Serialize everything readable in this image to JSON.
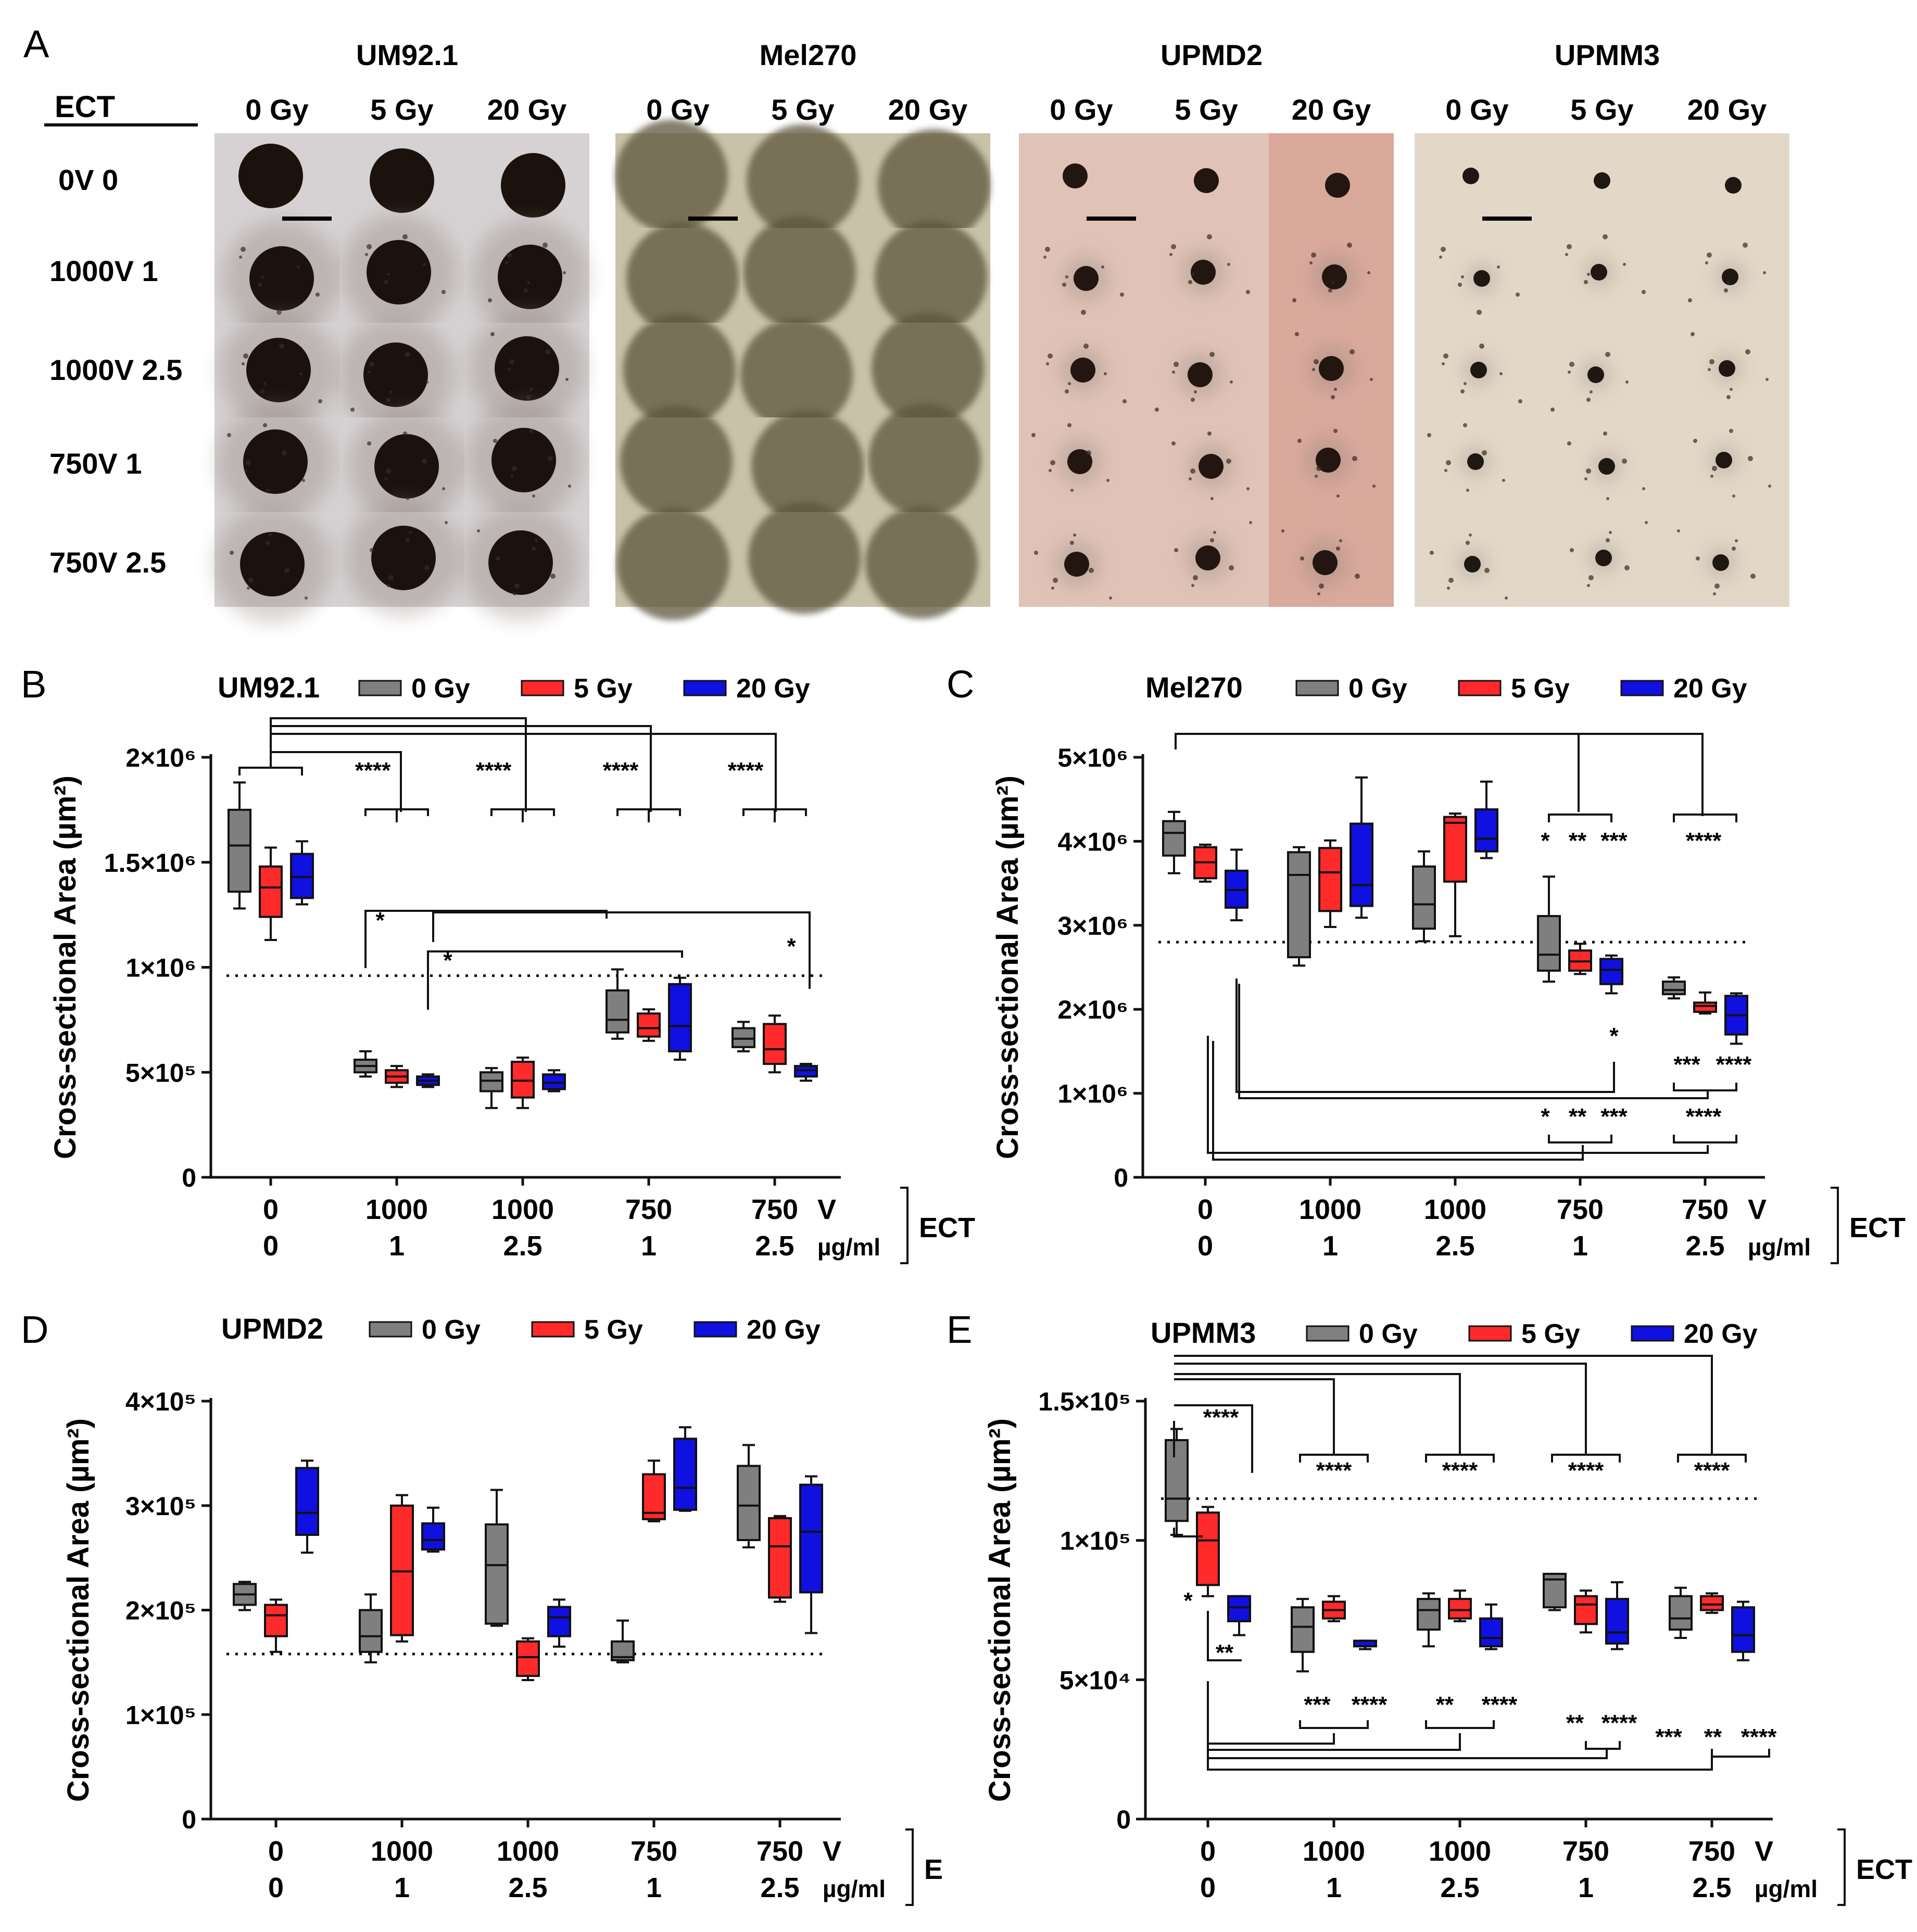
{
  "panel_a": {
    "letter": "A",
    "ect_header": "ECT",
    "row_labels": [
      "0V 0",
      "1000V 1",
      "1000V 2.5",
      "750V 1",
      "750V 2.5"
    ],
    "cell_lines": [
      {
        "name": "UM92.1",
        "doses": [
          "0 Gy",
          "5 Gy",
          "20 Gy"
        ],
        "style": "um"
      },
      {
        "name": "Mel270",
        "doses": [
          "0 Gy",
          "5 Gy",
          "20 Gy"
        ],
        "style": "mel"
      },
      {
        "name": "UPMD2",
        "doses": [
          "0 Gy",
          "5 Gy",
          "20 Gy"
        ],
        "style": "upmd"
      },
      {
        "name": "UPMM3",
        "doses": [
          "0 Gy",
          "5 Gy",
          "20 Gy"
        ],
        "style": "upmm"
      }
    ]
  },
  "chart_data": [
    {
      "panel": "B",
      "title": "UM92.1",
      "type": "box",
      "ylabel": "Cross-sectional Area (µm²)",
      "ylim": [
        0,
        2000000
      ],
      "yticks": [
        {
          "v": 0,
          "label": "0"
        },
        {
          "v": 500000,
          "label": "5×10⁵"
        },
        {
          "v": 1000000,
          "label": "1×10⁶"
        },
        {
          "v": 1500000,
          "label": "1.5×10⁶"
        },
        {
          "v": 2000000,
          "label": "2×10⁶"
        }
      ],
      "categories": [
        {
          "v": "0",
          "d": "0"
        },
        {
          "v": "1000",
          "d": "1"
        },
        {
          "v": "1000",
          "d": "2.5"
        },
        {
          "v": "750",
          "d": "1"
        },
        {
          "v": "750",
          "d": "2.5"
        }
      ],
      "unit_v": "V",
      "unit_d": "µg/ml",
      "group_label": "ECT",
      "reference_line": 960000,
      "legend": [
        "0 Gy",
        "5 Gy",
        "20 Gy"
      ],
      "series": [
        {
          "name": "0 Gy",
          "boxes": [
            [
              1280000,
              1360000,
              1580000,
              1750000,
              1880000
            ],
            [
              480000,
              500000,
              530000,
              560000,
              600000
            ],
            [
              330000,
              410000,
              460000,
              500000,
              520000
            ],
            [
              660000,
              690000,
              750000,
              890000,
              990000
            ],
            [
              600000,
              620000,
              660000,
              710000,
              740000
            ]
          ]
        },
        {
          "name": "5 Gy",
          "boxes": [
            [
              1130000,
              1240000,
              1380000,
              1480000,
              1570000
            ],
            [
              430000,
              450000,
              480000,
              510000,
              530000
            ],
            [
              330000,
              380000,
              460000,
              550000,
              570000
            ],
            [
              650000,
              670000,
              710000,
              780000,
              800000
            ],
            [
              500000,
              540000,
              610000,
              730000,
              770000
            ]
          ]
        },
        {
          "name": "20 Gy",
          "boxes": [
            [
              1300000,
              1330000,
              1430000,
              1540000,
              1600000
            ],
            [
              430000,
              440000,
              460000,
              480000,
              490000
            ],
            [
              410000,
              420000,
              450000,
              490000,
              510000
            ],
            [
              560000,
              600000,
              720000,
              920000,
              950000
            ],
            [
              460000,
              480000,
              510000,
              530000,
              540000
            ]
          ]
        }
      ],
      "annotations": [
        "****",
        "****",
        "****",
        "****",
        "*",
        "*",
        "*"
      ]
    },
    {
      "panel": "C",
      "title": "Mel270",
      "type": "box",
      "ylabel": "Cross-sectional Area (µm²)",
      "ylim": [
        0,
        5000000
      ],
      "yticks": [
        {
          "v": 0,
          "label": "0"
        },
        {
          "v": 1000000,
          "label": "1×10⁶"
        },
        {
          "v": 2000000,
          "label": "2×10⁶"
        },
        {
          "v": 3000000,
          "label": "3×10⁶"
        },
        {
          "v": 4000000,
          "label": "4×10⁶"
        },
        {
          "v": 5000000,
          "label": "5×10⁶"
        }
      ],
      "categories": [
        {
          "v": "0",
          "d": "0"
        },
        {
          "v": "1000",
          "d": "1"
        },
        {
          "v": "1000",
          "d": "2.5"
        },
        {
          "v": "750",
          "d": "1"
        },
        {
          "v": "750",
          "d": "2.5"
        }
      ],
      "unit_v": "V",
      "unit_d": "µg/ml",
      "group_label": "ECT",
      "reference_line": 2800000,
      "legend": [
        "0 Gy",
        "5 Gy",
        "20 Gy"
      ],
      "series": [
        {
          "name": "0 Gy",
          "boxes": [
            [
              3620000,
              3830000,
              4100000,
              4240000,
              4350000
            ],
            [
              2520000,
              2620000,
              3600000,
              3870000,
              3930000
            ],
            [
              2810000,
              2960000,
              3250000,
              3700000,
              3880000
            ],
            [
              2330000,
              2460000,
              2650000,
              3110000,
              3580000
            ],
            [
              2130000,
              2180000,
              2230000,
              2330000,
              2380000
            ]
          ]
        },
        {
          "name": "5 Gy",
          "boxes": [
            [
              3520000,
              3560000,
              3750000,
              3930000,
              3960000
            ],
            [
              2980000,
              3170000,
              3630000,
              3920000,
              4010000
            ],
            [
              2870000,
              3520000,
              4220000,
              4290000,
              4330000
            ],
            [
              2420000,
              2460000,
              2570000,
              2700000,
              2780000
            ],
            [
              1950000,
              1970000,
              2040000,
              2080000,
              2200000
            ]
          ]
        },
        {
          "name": "20 Gy",
          "boxes": [
            [
              3060000,
              3210000,
              3420000,
              3650000,
              3900000
            ],
            [
              3090000,
              3230000,
              3480000,
              4210000,
              4760000
            ],
            [
              3800000,
              3880000,
              4030000,
              4380000,
              4710000
            ],
            [
              2190000,
              2300000,
              2470000,
              2600000,
              2640000
            ],
            [
              1590000,
              1700000,
              1930000,
              2160000,
              2190000
            ]
          ]
        }
      ],
      "annotations": [
        "*",
        "**",
        "***",
        "****",
        "*",
        "***",
        "****",
        "*",
        "**",
        "***",
        "****"
      ]
    },
    {
      "panel": "D",
      "title": "UPMD2",
      "type": "box",
      "ylabel": "Cross-sectional Area (µm²)",
      "ylim": [
        0,
        400000
      ],
      "yticks": [
        {
          "v": 0,
          "label": "0"
        },
        {
          "v": 100000,
          "label": "1×10⁵"
        },
        {
          "v": 200000,
          "label": "2×10⁵"
        },
        {
          "v": 300000,
          "label": "3×10⁵"
        },
        {
          "v": 400000,
          "label": "4×10⁵"
        }
      ],
      "categories": [
        {
          "v": "0",
          "d": "0"
        },
        {
          "v": "1000",
          "d": "1"
        },
        {
          "v": "1000",
          "d": "2.5"
        },
        {
          "v": "750",
          "d": "1"
        },
        {
          "v": "750",
          "d": "2.5"
        }
      ],
      "unit_v": "V",
      "unit_d": "µg/ml",
      "group_label": "E",
      "reference_line": 158000,
      "legend": [
        "0 Gy",
        "5 Gy",
        "20 Gy"
      ],
      "series": [
        {
          "name": "0 Gy",
          "boxes": [
            [
              200000,
              205000,
              215000,
              225000,
              227000
            ],
            [
              150000,
              160000,
              175000,
              200000,
              215000
            ],
            [
              185000,
              187000,
              243000,
              282000,
              315000
            ],
            [
              150000,
              152000,
              155000,
              170000,
              190000
            ],
            [
              260000,
              267000,
              300000,
              338000,
              358000
            ]
          ]
        },
        {
          "name": "5 Gy",
          "boxes": [
            [
              160000,
              175000,
              195000,
              205000,
              210000
            ],
            [
              170000,
              176000,
              237000,
              300000,
              310000
            ],
            [
              133000,
              137000,
              155000,
              170000,
              173000
            ],
            [
              285000,
              287000,
              293000,
              330000,
              343000
            ],
            [
              208000,
              212000,
              261000,
              288000,
              290000
            ]
          ]
        },
        {
          "name": "20 Gy",
          "boxes": [
            [
              255000,
              272000,
              293000,
              336000,
              343000
            ],
            [
              256000,
              258000,
              267000,
              283000,
              298000
            ],
            [
              165000,
              175000,
              193000,
              203000,
              210000
            ],
            [
              295000,
              296000,
              317000,
              364000,
              375000
            ],
            [
              178000,
              217000,
              275000,
              320000,
              328000
            ]
          ]
        }
      ],
      "annotations": []
    },
    {
      "panel": "E",
      "title": "UPMM3",
      "type": "box",
      "ylabel": "Cross-sectional Area (µm²)",
      "ylim": [
        0,
        150000
      ],
      "yticks": [
        {
          "v": 0,
          "label": "0"
        },
        {
          "v": 50000,
          "label": "5×10⁴"
        },
        {
          "v": 100000,
          "label": "1×10⁵"
        },
        {
          "v": 150000,
          "label": "1.5×10⁵"
        }
      ],
      "categories": [
        {
          "v": "0",
          "d": "0"
        },
        {
          "v": "1000",
          "d": "1"
        },
        {
          "v": "1000",
          "d": "2.5"
        },
        {
          "v": "750",
          "d": "1"
        },
        {
          "v": "750",
          "d": "2.5"
        }
      ],
      "unit_v": "V",
      "unit_d": "µg/ml",
      "group_label": "ECT",
      "reference_line": 115000,
      "legend": [
        "0 Gy",
        "5 Gy",
        "20 Gy"
      ],
      "series": [
        {
          "name": "0 Gy",
          "boxes": [
            [
              102000,
              107000,
              115000,
              136000,
              140000
            ],
            [
              53000,
              60000,
              69000,
              76000,
              79000
            ],
            [
              62000,
              68000,
              75000,
              79000,
              81000
            ],
            [
              75000,
              76000,
              86000,
              88000,
              88000
            ],
            [
              65000,
              68000,
              72000,
              80000,
              83000
            ]
          ]
        },
        {
          "name": "5 Gy",
          "boxes": [
            [
              80000,
              84000,
              100000,
              110000,
              112000
            ],
            [
              71000,
              72000,
              75000,
              78000,
              80000
            ],
            [
              71000,
              72000,
              75000,
              79000,
              82000
            ],
            [
              67000,
              70000,
              77000,
              80000,
              82000
            ],
            [
              74000,
              75000,
              77000,
              80000,
              81000
            ]
          ]
        },
        {
          "name": "20 Gy",
          "boxes": [
            [
              66000,
              71000,
              76000,
              80000,
              80000
            ],
            [
              61000,
              62000,
              62000,
              64000,
              64000
            ],
            [
              61000,
              62000,
              65000,
              72000,
              77000
            ],
            [
              61000,
              63000,
              67000,
              79000,
              85000
            ],
            [
              57000,
              60000,
              66000,
              76000,
              78000
            ]
          ]
        }
      ],
      "annotations": [
        "****",
        "*",
        "**",
        "****",
        "****",
        "****",
        "****",
        "***",
        "****",
        "**",
        "****",
        "**",
        "****",
        "***",
        "**",
        "****"
      ]
    }
  ]
}
